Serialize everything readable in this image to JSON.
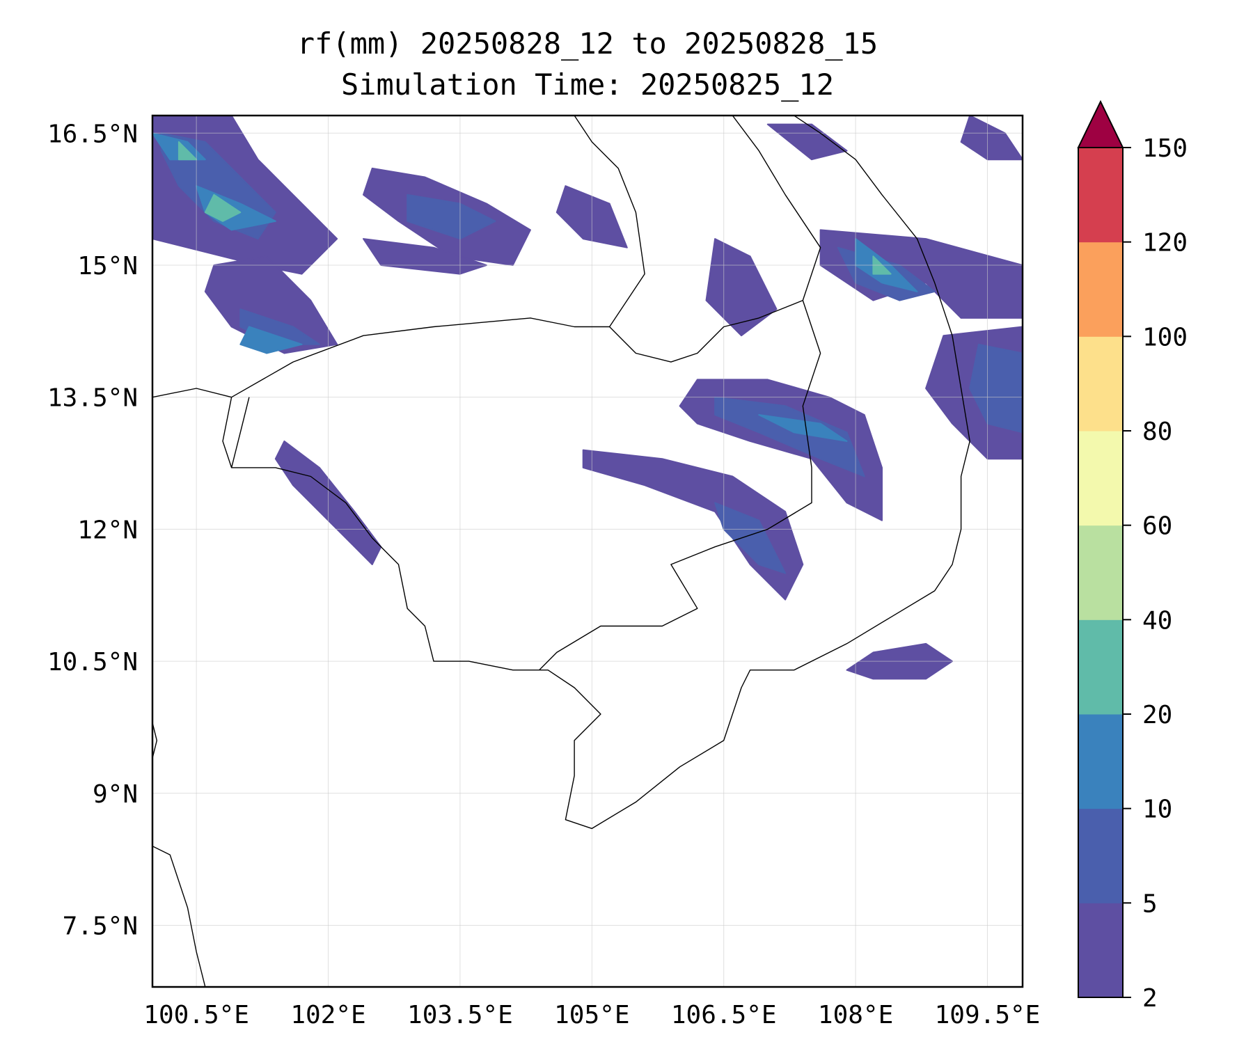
{
  "title": {
    "line1": "rf(mm) 20250828_12 to 20250828_15",
    "line2": "Simulation Time: 20250825_12"
  },
  "map": {
    "lon_range": [
      100.0,
      109.9
    ],
    "lat_range": [
      6.8,
      16.7
    ],
    "lon_ticks": [
      {
        "value": 100.5,
        "label": "100.5°E"
      },
      {
        "value": 102.0,
        "label": "102°E"
      },
      {
        "value": 103.5,
        "label": "103.5°E"
      },
      {
        "value": 105.0,
        "label": "105°E"
      },
      {
        "value": 106.5,
        "label": "106.5°E"
      },
      {
        "value": 108.0,
        "label": "108°E"
      },
      {
        "value": 109.5,
        "label": "109.5°E"
      }
    ],
    "lat_ticks": [
      {
        "value": 16.5,
        "label": "16.5°N"
      },
      {
        "value": 15.0,
        "label": "15°N"
      },
      {
        "value": 13.5,
        "label": "13.5°N"
      },
      {
        "value": 12.0,
        "label": "12°N"
      },
      {
        "value": 10.5,
        "label": "10.5°N"
      },
      {
        "value": 9.0,
        "label": "9°N"
      },
      {
        "value": 7.5,
        "label": "7.5°N"
      }
    ],
    "gridlines": true
  },
  "colorbar": {
    "levels": [
      "2",
      "5",
      "10",
      "20",
      "40",
      "60",
      "80",
      "100",
      "120",
      "150"
    ],
    "colors": [
      "#5e4fa2",
      "#4a5fad",
      "#3a82bd",
      "#60bba9",
      "#b9e0a0",
      "#f3f9ad",
      "#fde08b",
      "#fba05c",
      "#d53f4f"
    ],
    "extend_color": "#9e0142",
    "extend": "max"
  },
  "rain_areas": [
    {
      "level": 1,
      "points": [
        [
          100.0,
          16.7
        ],
        [
          100.9,
          16.7
        ],
        [
          101.2,
          16.2
        ],
        [
          101.6,
          15.8
        ],
        [
          102.1,
          15.3
        ],
        [
          101.7,
          14.9
        ],
        [
          101.2,
          15.0
        ],
        [
          100.0,
          15.3
        ]
      ]
    },
    {
      "level": 1,
      "points": [
        [
          100.7,
          15.0
        ],
        [
          101.3,
          15.1
        ],
        [
          101.8,
          14.6
        ],
        [
          102.1,
          14.1
        ],
        [
          101.5,
          14.0
        ],
        [
          100.9,
          14.3
        ],
        [
          100.6,
          14.7
        ]
      ]
    },
    {
      "level": 1,
      "points": [
        [
          102.5,
          16.1
        ],
        [
          103.1,
          16.0
        ],
        [
          103.8,
          15.7
        ],
        [
          104.3,
          15.4
        ],
        [
          104.1,
          15.0
        ],
        [
          103.4,
          15.1
        ],
        [
          102.8,
          15.5
        ],
        [
          102.4,
          15.8
        ]
      ]
    },
    {
      "level": 1,
      "points": [
        [
          102.4,
          15.3
        ],
        [
          103.2,
          15.2
        ],
        [
          103.8,
          15.0
        ],
        [
          103.5,
          14.9
        ],
        [
          102.6,
          15.0
        ]
      ]
    },
    {
      "level": 1,
      "points": [
        [
          104.7,
          15.9
        ],
        [
          105.2,
          15.7
        ],
        [
          105.4,
          15.2
        ],
        [
          104.9,
          15.3
        ],
        [
          104.6,
          15.6
        ]
      ]
    },
    {
      "level": 1,
      "points": [
        [
          106.4,
          15.3
        ],
        [
          106.8,
          15.1
        ],
        [
          107.1,
          14.5
        ],
        [
          106.7,
          14.2
        ],
        [
          106.3,
          14.6
        ]
      ]
    },
    {
      "level": 1,
      "points": [
        [
          107.6,
          15.4
        ],
        [
          108.8,
          15.3
        ],
        [
          109.9,
          15.0
        ],
        [
          109.9,
          14.4
        ],
        [
          109.2,
          14.4
        ],
        [
          108.8,
          14.8
        ],
        [
          108.2,
          14.6
        ],
        [
          107.6,
          15.0
        ]
      ]
    },
    {
      "level": 1,
      "points": [
        [
          106.2,
          13.7
        ],
        [
          107.0,
          13.7
        ],
        [
          107.7,
          13.5
        ],
        [
          108.1,
          13.3
        ],
        [
          108.3,
          12.7
        ],
        [
          108.3,
          12.1
        ],
        [
          107.9,
          12.3
        ],
        [
          107.5,
          12.8
        ],
        [
          106.8,
          13.0
        ],
        [
          106.2,
          13.2
        ],
        [
          106.0,
          13.4
        ]
      ]
    },
    {
      "level": 1,
      "points": [
        [
          104.9,
          12.9
        ],
        [
          105.8,
          12.8
        ],
        [
          106.6,
          12.6
        ],
        [
          107.2,
          12.2
        ],
        [
          107.4,
          11.6
        ],
        [
          107.2,
          11.2
        ],
        [
          106.8,
          11.6
        ],
        [
          106.4,
          12.2
        ],
        [
          105.6,
          12.5
        ],
        [
          104.9,
          12.7
        ]
      ]
    },
    {
      "level": 1,
      "points": [
        [
          101.5,
          13.0
        ],
        [
          101.9,
          12.7
        ],
        [
          102.3,
          12.2
        ],
        [
          102.6,
          11.8
        ],
        [
          102.5,
          11.6
        ],
        [
          102.1,
          12.0
        ],
        [
          101.6,
          12.5
        ],
        [
          101.4,
          12.8
        ]
      ]
    },
    {
      "level": 1,
      "points": [
        [
          109.0,
          14.2
        ],
        [
          109.9,
          14.3
        ],
        [
          109.9,
          12.8
        ],
        [
          109.5,
          12.8
        ],
        [
          109.1,
          13.2
        ],
        [
          108.8,
          13.6
        ]
      ]
    },
    {
      "level": 1,
      "points": [
        [
          108.2,
          10.6
        ],
        [
          108.8,
          10.7
        ],
        [
          109.1,
          10.5
        ],
        [
          108.8,
          10.3
        ],
        [
          108.2,
          10.3
        ],
        [
          107.9,
          10.4
        ]
      ]
    },
    {
      "level": 1,
      "points": [
        [
          109.3,
          16.7
        ],
        [
          109.7,
          16.5
        ],
        [
          109.9,
          16.2
        ],
        [
          109.5,
          16.2
        ],
        [
          109.2,
          16.4
        ]
      ]
    },
    {
      "level": 1,
      "points": [
        [
          107.0,
          16.6
        ],
        [
          107.5,
          16.6
        ],
        [
          107.9,
          16.3
        ],
        [
          107.5,
          16.2
        ]
      ]
    },
    {
      "level": 2,
      "points": [
        [
          100.1,
          16.5
        ],
        [
          100.6,
          16.4
        ],
        [
          101.0,
          16.0
        ],
        [
          101.4,
          15.6
        ],
        [
          101.2,
          15.3
        ],
        [
          100.7,
          15.5
        ],
        [
          100.3,
          15.9
        ],
        [
          100.1,
          16.3
        ]
      ]
    },
    {
      "level": 2,
      "points": [
        [
          101.0,
          14.5
        ],
        [
          101.6,
          14.3
        ],
        [
          101.9,
          14.1
        ],
        [
          101.4,
          14.1
        ],
        [
          101.0,
          14.3
        ]
      ]
    },
    {
      "level": 2,
      "points": [
        [
          102.9,
          15.8
        ],
        [
          103.5,
          15.7
        ],
        [
          103.9,
          15.5
        ],
        [
          103.5,
          15.3
        ],
        [
          102.9,
          15.5
        ]
      ]
    },
    {
      "level": 2,
      "points": [
        [
          107.8,
          15.2
        ],
        [
          108.5,
          15.0
        ],
        [
          108.9,
          14.7
        ],
        [
          108.5,
          14.6
        ],
        [
          108.0,
          14.8
        ]
      ]
    },
    {
      "level": 2,
      "points": [
        [
          109.4,
          14.1
        ],
        [
          109.9,
          14.0
        ],
        [
          109.9,
          13.1
        ],
        [
          109.5,
          13.2
        ],
        [
          109.3,
          13.6
        ]
      ]
    },
    {
      "level": 2,
      "points": [
        [
          106.4,
          13.5
        ],
        [
          107.2,
          13.4
        ],
        [
          107.9,
          13.1
        ],
        [
          108.1,
          12.6
        ],
        [
          107.6,
          12.8
        ],
        [
          106.9,
          13.1
        ],
        [
          106.4,
          13.3
        ]
      ]
    },
    {
      "level": 2,
      "points": [
        [
          106.4,
          12.3
        ],
        [
          106.9,
          12.1
        ],
        [
          107.2,
          11.5
        ],
        [
          106.9,
          11.6
        ],
        [
          106.5,
          12.0
        ]
      ]
    },
    {
      "level": 3,
      "points": [
        [
          100.0,
          16.5
        ],
        [
          100.4,
          16.4
        ],
        [
          100.6,
          16.2
        ],
        [
          100.2,
          16.2
        ]
      ]
    },
    {
      "level": 3,
      "points": [
        [
          100.5,
          15.9
        ],
        [
          101.0,
          15.7
        ],
        [
          101.4,
          15.5
        ],
        [
          100.9,
          15.4
        ],
        [
          100.6,
          15.6
        ]
      ]
    },
    {
      "level": 3,
      "points": [
        [
          101.1,
          14.3
        ],
        [
          101.7,
          14.1
        ],
        [
          101.3,
          14.0
        ],
        [
          101.0,
          14.1
        ]
      ]
    },
    {
      "level": 3,
      "points": [
        [
          108.0,
          15.3
        ],
        [
          108.4,
          15.0
        ],
        [
          108.7,
          14.7
        ],
        [
          108.3,
          14.8
        ],
        [
          108.0,
          15.0
        ]
      ]
    },
    {
      "level": 3,
      "points": [
        [
          106.9,
          13.3
        ],
        [
          107.6,
          13.2
        ],
        [
          107.9,
          13.0
        ],
        [
          107.3,
          13.1
        ]
      ]
    },
    {
      "level": 4,
      "points": [
        [
          100.3,
          16.4
        ],
        [
          100.5,
          16.2
        ],
        [
          100.3,
          16.2
        ]
      ]
    },
    {
      "level": 4,
      "points": [
        [
          100.7,
          15.8
        ],
        [
          101.0,
          15.6
        ],
        [
          100.8,
          15.5
        ],
        [
          100.6,
          15.6
        ]
      ]
    },
    {
      "level": 4,
      "points": [
        [
          108.2,
          15.1
        ],
        [
          108.4,
          14.9
        ],
        [
          108.2,
          14.9
        ]
      ]
    }
  ],
  "coastlines": [
    [
      [
        100.0,
        13.5
      ],
      [
        100.5,
        13.6
      ],
      [
        100.9,
        13.5
      ],
      [
        100.8,
        13.0
      ],
      [
        100.9,
        12.7
      ],
      [
        101.4,
        12.7
      ],
      [
        101.8,
        12.6
      ],
      [
        102.2,
        12.3
      ],
      [
        102.5,
        11.9
      ],
      [
        102.8,
        11.6
      ],
      [
        102.9,
        11.1
      ],
      [
        103.1,
        10.9
      ],
      [
        103.2,
        10.5
      ],
      [
        103.6,
        10.5
      ],
      [
        104.1,
        10.4
      ],
      [
        104.5,
        10.4
      ],
      [
        104.8,
        10.2
      ],
      [
        105.1,
        9.9
      ],
      [
        104.8,
        9.6
      ],
      [
        104.8,
        9.2
      ],
      [
        104.7,
        8.7
      ],
      [
        105.0,
        8.6
      ],
      [
        105.5,
        8.9
      ],
      [
        106.0,
        9.3
      ],
      [
        106.5,
        9.6
      ],
      [
        106.7,
        10.2
      ],
      [
        106.8,
        10.4
      ],
      [
        107.3,
        10.4
      ],
      [
        107.9,
        10.7
      ],
      [
        108.4,
        11.0
      ],
      [
        108.9,
        11.3
      ],
      [
        109.1,
        11.6
      ],
      [
        109.2,
        12.0
      ],
      [
        109.2,
        12.6
      ],
      [
        109.3,
        13.0
      ],
      [
        109.2,
        13.6
      ],
      [
        109.1,
        14.2
      ],
      [
        108.9,
        14.8
      ],
      [
        108.7,
        15.3
      ],
      [
        108.3,
        15.8
      ],
      [
        108.0,
        16.2
      ],
      [
        107.6,
        16.5
      ],
      [
        107.3,
        16.7
      ]
    ],
    [
      [
        100.0,
        8.4
      ],
      [
        100.2,
        8.3
      ],
      [
        100.4,
        7.7
      ],
      [
        100.5,
        7.2
      ],
      [
        100.6,
        6.8
      ]
    ],
    [
      [
        100.0,
        9.8
      ],
      [
        100.05,
        9.6
      ],
      [
        100.0,
        9.4
      ]
    ]
  ],
  "borders": [
    [
      [
        100.9,
        13.5
      ],
      [
        101.6,
        13.9
      ],
      [
        102.4,
        14.2
      ],
      [
        103.2,
        14.3
      ],
      [
        104.3,
        14.4
      ],
      [
        104.8,
        14.3
      ],
      [
        105.2,
        14.3
      ],
      [
        105.5,
        14.0
      ],
      [
        105.9,
        13.9
      ],
      [
        106.2,
        14.0
      ],
      [
        106.5,
        14.3
      ],
      [
        106.9,
        14.4
      ],
      [
        107.4,
        14.6
      ],
      [
        107.6,
        14.0
      ],
      [
        107.4,
        13.4
      ],
      [
        107.5,
        12.7
      ],
      [
        107.5,
        12.3
      ],
      [
        107.0,
        12.0
      ],
      [
        106.4,
        11.8
      ],
      [
        105.9,
        11.6
      ],
      [
        106.2,
        11.1
      ],
      [
        105.8,
        10.9
      ],
      [
        105.1,
        10.9
      ],
      [
        104.6,
        10.6
      ],
      [
        104.4,
        10.4
      ]
    ],
    [
      [
        105.2,
        14.3
      ],
      [
        105.6,
        14.9
      ],
      [
        105.5,
        15.6
      ],
      [
        105.3,
        16.1
      ],
      [
        105.0,
        16.4
      ],
      [
        104.8,
        16.7
      ]
    ],
    [
      [
        107.4,
        14.6
      ],
      [
        107.6,
        15.2
      ],
      [
        107.2,
        15.8
      ],
      [
        106.9,
        16.3
      ],
      [
        106.6,
        16.7
      ]
    ],
    [
      [
        101.1,
        13.5
      ],
      [
        101.0,
        13.1
      ],
      [
        100.9,
        12.7
      ]
    ]
  ]
}
